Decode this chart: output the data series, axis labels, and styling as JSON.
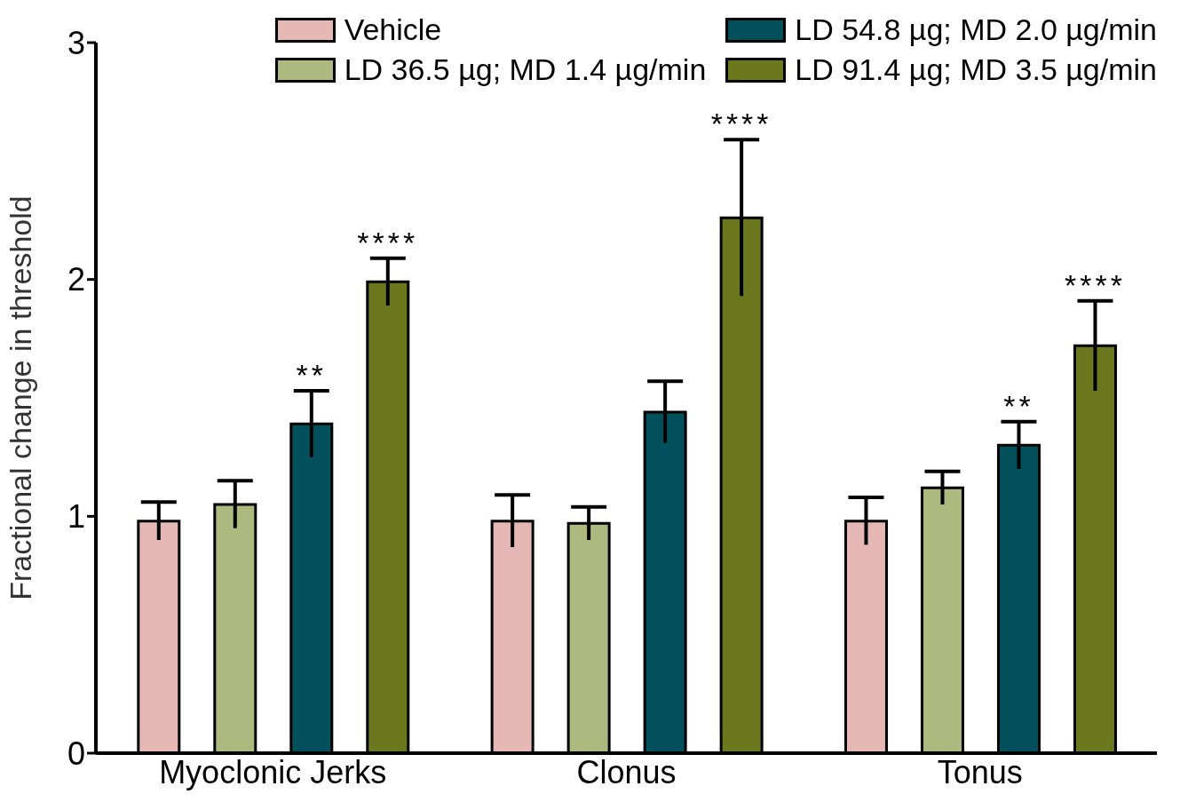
{
  "chart_data": {
    "type": "bar",
    "ylabel": "Fractional change in threshold",
    "categories": [
      "Myoclonic Jerks",
      "Clonus",
      "Tonus"
    ],
    "series": [
      {
        "name": "Vehicle",
        "color": "#e6b8b5",
        "values": [
          0.98,
          0.98,
          0.98
        ],
        "errors": [
          0.08,
          0.11,
          0.1
        ]
      },
      {
        "name": "LD 36.5 µg; MD 1.4 µg/min",
        "color": "#adb97f",
        "values": [
          1.05,
          0.97,
          1.12
        ],
        "errors": [
          0.1,
          0.07,
          0.07
        ]
      },
      {
        "name": "LD 54.8 µg; MD 2.0 µg/min",
        "color": "#02505c",
        "values": [
          1.39,
          1.44,
          1.3
        ],
        "errors": [
          0.14,
          0.13,
          0.1
        ],
        "value_labels": [
          "**",
          null,
          "**"
        ]
      },
      {
        "name": "LD 91.4 µg; MD 3.5 µg/min",
        "color": "#6b781e",
        "values": [
          1.99,
          2.26,
          1.72
        ],
        "errors": [
          0.1,
          0.33,
          0.19
        ],
        "value_labels": [
          "****",
          "****",
          "****"
        ]
      }
    ],
    "ylim": [
      0,
      3
    ],
    "yticks": [
      0,
      1,
      2,
      3
    ],
    "legend": "top"
  }
}
